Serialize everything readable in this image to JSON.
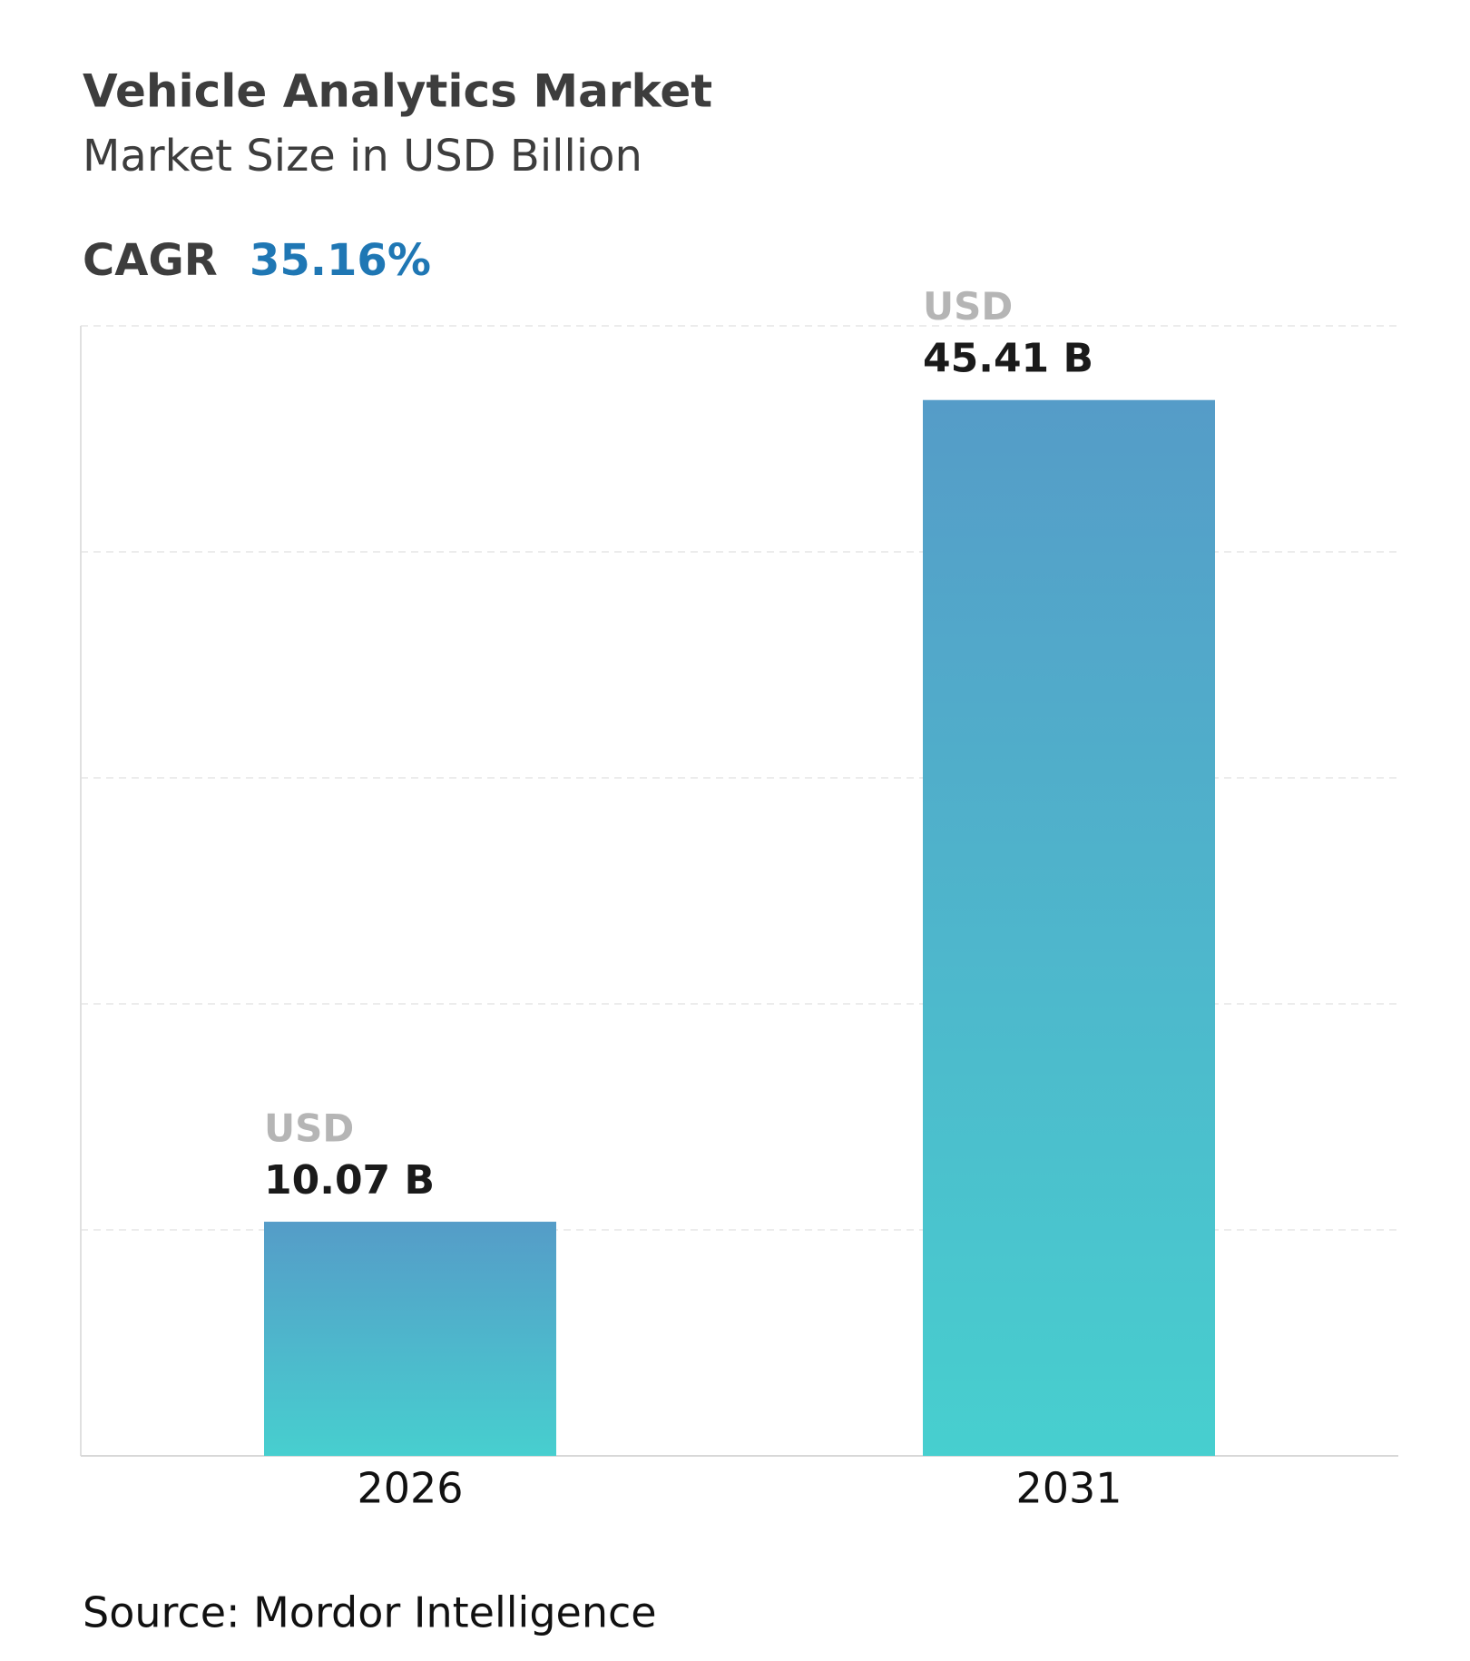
{
  "chart_data": {
    "type": "bar",
    "title": "Vehicle Analytics Market",
    "subtitle": "Market Size in USD Billion",
    "cagr": {
      "label": "CAGR",
      "value": "35.16%"
    },
    "categories": [
      "2026",
      "2031"
    ],
    "values": [
      10.07,
      45.41
    ],
    "value_labels": [
      "10.07 B",
      "45.41 B"
    ],
    "value_label_prefix": "USD",
    "gradient": [
      "#559cc8",
      "#47cfcf"
    ],
    "ylim": [
      0,
      48.6
    ],
    "yticks": [
      0,
      9.72,
      19.44,
      29.16,
      38.88,
      48.6
    ],
    "ytick_labels": false,
    "grid": true,
    "source": "Source: Mordor Intelligence"
  }
}
